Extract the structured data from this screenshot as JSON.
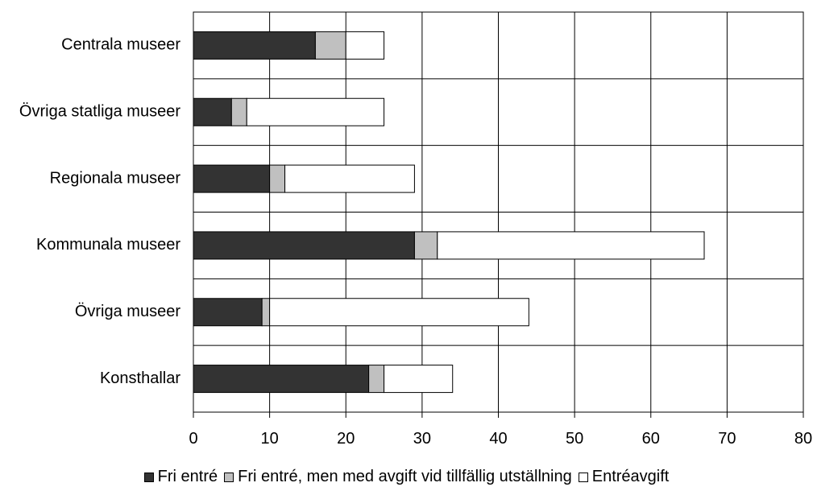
{
  "chart_data": {
    "type": "bar",
    "orientation": "horizontal",
    "stacked": true,
    "title": "",
    "xlabel": "",
    "ylabel": "",
    "xlim": [
      0,
      80
    ],
    "x_ticks": [
      0,
      10,
      20,
      30,
      40,
      50,
      60,
      70,
      80
    ],
    "grid": true,
    "legend_position": "bottom",
    "categories": [
      "Centrala museer",
      "Övriga statliga museer",
      "Regionala museer",
      "Kommunala museer",
      "Övriga museer",
      "Konsthallar"
    ],
    "series": [
      {
        "name": "Fri entré",
        "color": "#333333",
        "values": [
          16,
          5,
          10,
          29,
          9,
          23
        ]
      },
      {
        "name": "Fri entré, men med avgift vid tillfällig utställning",
        "color": "#c0c0c0",
        "values": [
          4,
          2,
          2,
          3,
          1,
          2
        ]
      },
      {
        "name": "Entréavgift",
        "color": "#ffffff",
        "values": [
          5,
          18,
          17,
          35,
          34,
          9
        ]
      }
    ]
  }
}
